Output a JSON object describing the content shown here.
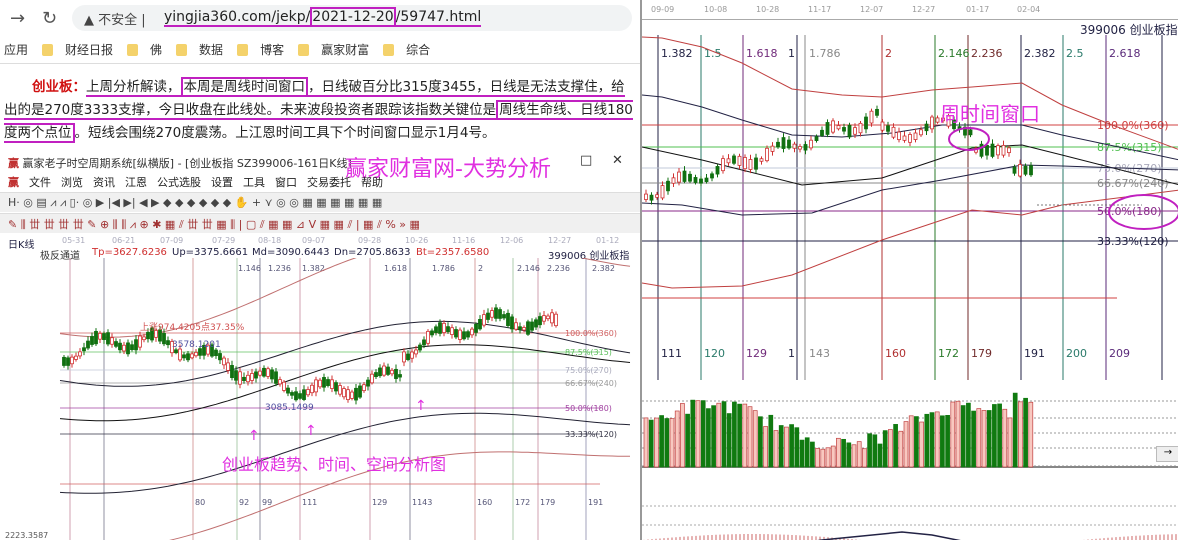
{
  "browser": {
    "security_label": "不安全",
    "url": "yingjia360.com/jekp/2021-12-20/59747.html",
    "url_parts": [
      "yingjia360.com/jekp/",
      "2021-12-20",
      "/",
      "59747.html"
    ],
    "bookmarks": [
      "应用",
      "财经日报",
      "佛",
      "数据",
      "博客",
      "赢家财富",
      "综合"
    ]
  },
  "article": {
    "lead": "创业板：",
    "s1": "上周分析解读，",
    "s2": "本周是周线时间窗口",
    "s3": "，日线破百分比315度3455，日线是无法支撑住，给出的是270度3333支撑，今日收盘在此线处。未来波段投资者跟踪该指数关键位是",
    "s4": "周线生命线、日线180度两个点位",
    "s5": "。短线会围绕270度震荡。上江恩时间工具下个时间窗口显示1月4号。"
  },
  "app": {
    "title": "赢家老子时空周期系统[纵横版] - [创业板指  SZ399006-161日K线]",
    "overlay_title": "赢家财富网-大势分析",
    "menu": [
      "文件",
      "浏览",
      "资讯",
      "江恩",
      "公式选股",
      "设置",
      "工具",
      "窗口",
      "交易委托",
      "帮助"
    ],
    "toolbar1": "H· ◎ ▤ ⩘ ⩘ ▯· ◎ ▶ |◀ ▶| ◀ ▶ ◆ ◆ ◆ ◆ ◆ ◆ ✋ + ⋎ ◎ ◎ ▦ ▦ ▦ ▦ ▦ ▦",
    "toolbar2": "✎ ⫼ 丗 丗 丗 丗 ✎ ⊕ ⫼ ⫼ ⩘ ⊕ ✱ ▦ ⫽ 丗 丗 ▦ ⫼ | ▢ ⫽ ▦ ▦ ⊿ V ▦ ▦ ⫽ | ▦ ⫽ % » ▦"
  },
  "left_chart": {
    "period_label": "日K线",
    "indicator": "极反通道",
    "tp": "Tp=3627.6236",
    "up": "Up=3375.6661",
    "md": "Md=3090.6443",
    "dn": "Dn=2705.8633",
    "bt": "Bt=2357.6580",
    "symbol": "399006  创业板指",
    "dates": [
      "05-31",
      "06-21",
      "07-09",
      "07-29",
      "08-18",
      "09-07",
      "09-28",
      "10-26",
      "11-16",
      "12-06",
      "12-27",
      "01-12"
    ],
    "fib_labels": [
      "1.146",
      "1.236",
      "1.382",
      "1.618",
      "1.786",
      "2",
      "2.146",
      "2.236",
      "2.382"
    ],
    "count_labels": [
      "80",
      "92",
      "99",
      "111",
      "129",
      "1143",
      "160",
      "172",
      "179",
      "191"
    ],
    "pct_labels": [
      "100.0%(360)",
      "87.5%(315)",
      "75.0%(270)",
      "66.67%(240)",
      "50.0%(180)",
      "33.33%(120)"
    ],
    "ann_rise": "上涨974.4205点37.35%",
    "ann_high": "3578.1201",
    "ann_low": "3085.1499",
    "ann_bottom": "2223.3587",
    "caption": "创业板趋势、时间、空间分析图"
  },
  "right_chart": {
    "dates": [
      "09-09",
      "10-08",
      "10-28",
      "11-17",
      "12-07",
      "12-27",
      "01-17",
      "02-04"
    ],
    "symbol": "399006  创业板指",
    "fib_labels": [
      "1.382",
      "1.5",
      "1.618",
      "1",
      "1.786",
      "2",
      "2.146",
      "2.236",
      "2.382",
      "2.5",
      "2.618"
    ],
    "count_labels": [
      "111",
      "120",
      "129",
      "1",
      "143",
      "160",
      "172",
      "179",
      "191",
      "200",
      "209"
    ],
    "pct_labels": [
      "100.0%(360)",
      "87.5%(315)",
      "75.0%(270)",
      "66.67%(240)",
      "50.0%(180)",
      "33.33%(120)"
    ],
    "annotation": "周时间窗口",
    "scroll_arrow": "→"
  },
  "colors": {
    "up": "#d03030",
    "down": "#107010",
    "highlight": "#c020c0",
    "annotation": "#e030e0"
  }
}
